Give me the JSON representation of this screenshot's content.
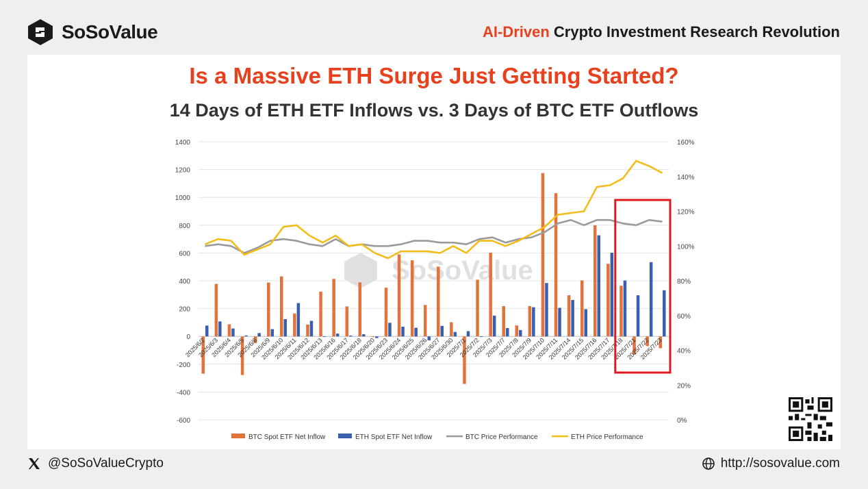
{
  "brand": {
    "name": "SoSoValue",
    "tagline_highlight": "AI-Driven",
    "tagline_rest": " Crypto Investment Research Revolution"
  },
  "headline": "Is a Massive ETH Surge Just Getting Started?",
  "subheadline": "14 Days of ETH ETF Inflows vs. 3 Days of BTC ETF Outflows",
  "footer": {
    "handle": "@SoSoValueCrypto",
    "url": "http://sosovalue.com"
  },
  "colors": {
    "btc_bar": "#e2733a",
    "eth_bar": "#3a5fae",
    "btc_price": "#9a9a9a",
    "eth_price": "#f2bc1a",
    "accent": "#e8401c",
    "highlight_box": "#e0191e"
  },
  "chart_data": {
    "type": "bar+line",
    "categories": [
      "2025/6/2",
      "2025/6/3",
      "2025/6/4",
      "2025/6/5",
      "2025/6/6",
      "2025/6/9",
      "2025/6/10",
      "2025/6/11",
      "2025/6/12",
      "2025/6/13",
      "2025/6/16",
      "2025/6/17",
      "2025/6/18",
      "2025/6/20",
      "2025/6/23",
      "2025/6/24",
      "2025/6/25",
      "2025/6/26",
      "2025/6/27",
      "2025/6/30",
      "2025/7/1",
      "2025/7/2",
      "2025/7/3",
      "2025/7/7",
      "2025/7/8",
      "2025/7/9",
      "2025/7/10",
      "2025/7/11",
      "2025/7/14",
      "2025/7/15",
      "2025/7/16",
      "2025/7/17",
      "2025/7/18",
      "2025/7/21",
      "2025/7/22",
      "2025/7/23"
    ],
    "left_axis": {
      "min": -600,
      "max": 1400,
      "ticks": [
        "-600",
        "-400",
        "-200",
        "0",
        "200",
        "400",
        "600",
        "800",
        "1000",
        "1200",
        "1400"
      ]
    },
    "right_axis": {
      "min": 0,
      "max": 160,
      "ticks": [
        "0%",
        "20%",
        "40%",
        "60%",
        "80%",
        "100%",
        "120%",
        "140%",
        "160%"
      ]
    },
    "series": [
      {
        "name": "BTC Spot ETF Net Inflow",
        "kind": "bar",
        "axis": "left",
        "values": [
          -268,
          378,
          87,
          -278,
          -48,
          387,
          432,
          165,
          85,
          322,
          414,
          216,
          388,
          -5,
          350,
          590,
          548,
          226,
          502,
          102,
          -342,
          408,
          602,
          218,
          79,
          218,
          1175,
          1030,
          296,
          403,
          799,
          522,
          364,
          -130,
          -70,
          -85
        ]
      },
      {
        "name": "ETH Spot ETF Net Inflow",
        "kind": "bar",
        "axis": "left",
        "values": [
          78,
          108,
          57,
          7,
          24,
          52,
          124,
          240,
          112,
          0,
          20,
          6,
          16,
          -12,
          98,
          70,
          62,
          -28,
          76,
          32,
          38,
          0,
          150,
          60,
          46,
          210,
          384,
          206,
          262,
          196,
          727,
          602,
          402,
          296,
          534,
          332
        ]
      },
      {
        "name": "BTC Price Performance",
        "kind": "line",
        "axis": "right",
        "values": [
          100,
          101,
          100,
          96,
          99,
          103,
          104,
          103,
          101,
          100,
          104,
          100,
          101,
          100,
          100,
          101,
          103,
          103,
          102,
          102,
          101,
          104,
          105,
          102,
          104,
          105,
          108,
          113,
          115,
          112,
          115,
          115,
          113,
          112,
          115,
          114
        ]
      },
      {
        "name": "ETH Price Performance",
        "kind": "line",
        "axis": "right",
        "values": [
          101,
          104,
          103,
          95,
          98,
          101,
          111,
          112,
          106,
          102,
          106,
          100,
          101,
          96,
          93,
          97,
          97,
          97,
          96,
          100,
          96,
          103,
          103,
          100,
          103,
          107,
          111,
          118,
          119,
          120,
          134,
          135,
          139,
          149,
          146,
          142
        ]
      }
    ],
    "highlight": {
      "from": "2025/7/18",
      "to": "2025/7/23"
    },
    "watermark": "SoSoValue"
  }
}
